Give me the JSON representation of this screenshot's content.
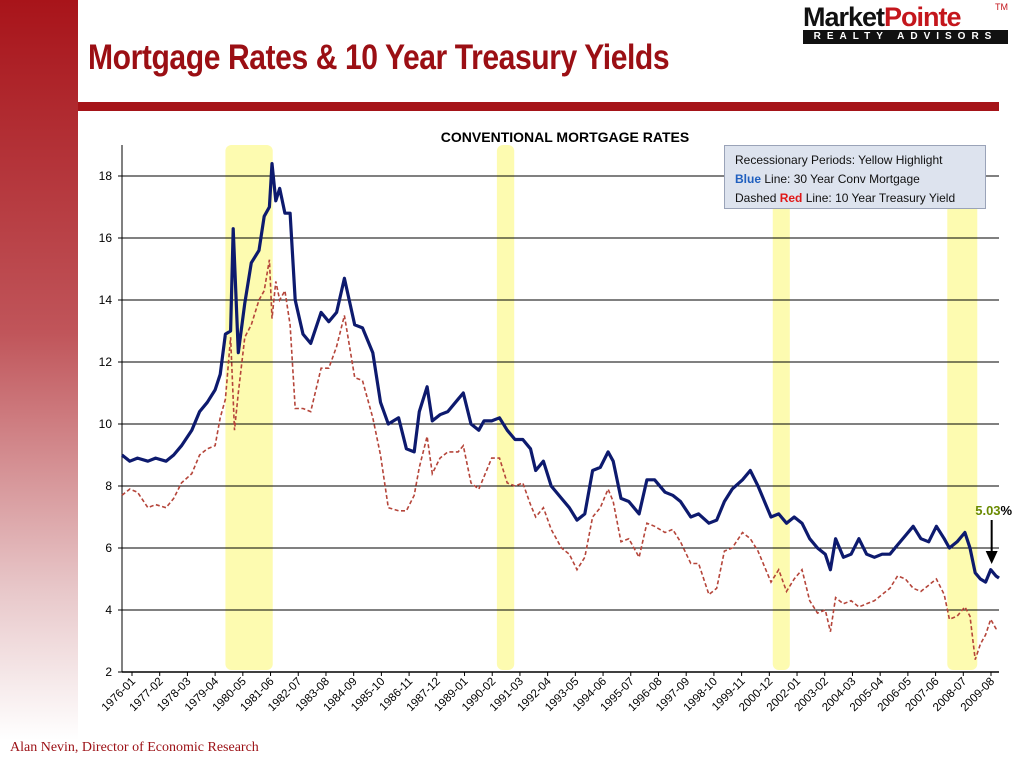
{
  "slide": {
    "title": "Mortgage Rates & 10 Year Treasury Yields",
    "footer": "Alan Nevin, Director of Economic Research",
    "logo_main_1": "Market",
    "logo_main_2": "Pointe",
    "logo_tm": "TM",
    "logo_sub": "REALTY ADVISORS"
  },
  "legend": {
    "line1": "Recessionary Periods: Yellow Highlight",
    "line2_prefix": "Blue",
    "line2_rest": " Line:  30 Year Conv Mortgage",
    "line3_pre": "Dashed ",
    "line3_red": "Red",
    "line3_rest": " Line: 10 Year Treasury Yield"
  },
  "colors": {
    "brand_red": "#a51419",
    "mortgage_line": "#0d1a6e",
    "treasury_line": "#b5453a",
    "recession_fill": "#fdfbb0",
    "grid": "#000000"
  },
  "chart_data": {
    "type": "line",
    "title": "CONVENTIONAL MORTGAGE RATES",
    "xlabel": "",
    "ylabel": "",
    "ylim": [
      2,
      19
    ],
    "yticks": [
      2,
      4,
      6,
      8,
      10,
      12,
      14,
      16,
      18
    ],
    "grid": "horizontal",
    "xlim": [
      1976.0,
      2009.92
    ],
    "x_tick_labels": [
      "1976-01",
      "1977-02",
      "1978-03",
      "1979-04",
      "1980-05",
      "1981-06",
      "1982-07",
      "1983-08",
      "1984-09",
      "1985-10",
      "1986-11",
      "1987-12",
      "1989-01",
      "1990-02",
      "1991-03",
      "1992-04",
      "1993-05",
      "1994-06",
      "1995-07",
      "1996-08",
      "1997-09",
      "1998-10",
      "1999-11",
      "2000-12",
      "2002-01",
      "2003-02",
      "2004-03",
      "2005-04",
      "2006-05",
      "2007-06",
      "2008-07",
      "2009-08"
    ],
    "recessions": [
      [
        1980.0,
        1981.83
      ],
      [
        1990.5,
        1991.17
      ],
      [
        2001.17,
        2001.83
      ],
      [
        2007.92,
        2009.08
      ]
    ],
    "annotation": {
      "text": "5.03%",
      "x": 2009.83,
      "y": 5.03
    },
    "series": [
      {
        "name": "30 Year Conv Mortgage",
        "style": "solid",
        "x": [
          1976.0,
          1976.3,
          1976.6,
          1977.0,
          1977.3,
          1977.7,
          1978.0,
          1978.3,
          1978.7,
          1979.0,
          1979.3,
          1979.6,
          1979.8,
          1980.0,
          1980.2,
          1980.3,
          1980.5,
          1980.75,
          1981.0,
          1981.3,
          1981.5,
          1981.7,
          1981.8,
          1981.95,
          1982.1,
          1982.3,
          1982.5,
          1982.7,
          1983.0,
          1983.3,
          1983.7,
          1984.0,
          1984.3,
          1984.6,
          1985.0,
          1985.3,
          1985.7,
          1986.0,
          1986.3,
          1986.7,
          1987.0,
          1987.3,
          1987.5,
          1987.8,
          1988.0,
          1988.3,
          1988.6,
          1989.0,
          1989.2,
          1989.5,
          1989.8,
          1990.0,
          1990.3,
          1990.6,
          1990.9,
          1991.2,
          1991.5,
          1991.8,
          1992.0,
          1992.3,
          1992.6,
          1993.0,
          1993.3,
          1993.6,
          1993.9,
          1994.2,
          1994.5,
          1994.8,
          1995.0,
          1995.3,
          1995.6,
          1996.0,
          1996.3,
          1996.6,
          1997.0,
          1997.3,
          1997.6,
          1998.0,
          1998.3,
          1998.7,
          1999.0,
          1999.3,
          1999.6,
          2000.0,
          2000.3,
          2000.6,
          2000.9,
          2001.1,
          2001.4,
          2001.7,
          2002.0,
          2002.3,
          2002.6,
          2002.9,
          2003.2,
          2003.4,
          2003.6,
          2003.9,
          2004.2,
          2004.5,
          2004.8,
          2005.1,
          2005.4,
          2005.7,
          2006.0,
          2006.3,
          2006.6,
          2006.9,
          2007.2,
          2007.5,
          2007.8,
          2008.0,
          2008.3,
          2008.6,
          2008.8,
          2009.0,
          2009.2,
          2009.4,
          2009.6,
          2009.8,
          2009.92
        ],
        "y": [
          9.0,
          8.8,
          8.9,
          8.8,
          8.9,
          8.8,
          9.0,
          9.3,
          9.8,
          10.4,
          10.7,
          11.1,
          11.6,
          12.9,
          13.0,
          16.3,
          12.3,
          13.9,
          15.2,
          15.6,
          16.7,
          17.0,
          18.4,
          17.2,
          17.6,
          16.8,
          16.8,
          14.0,
          12.9,
          12.6,
          13.6,
          13.3,
          13.6,
          14.7,
          13.2,
          13.1,
          12.3,
          10.7,
          10.0,
          10.2,
          9.2,
          9.1,
          10.4,
          11.2,
          10.1,
          10.3,
          10.4,
          10.8,
          11.0,
          10.0,
          9.8,
          10.1,
          10.1,
          10.2,
          9.8,
          9.5,
          9.5,
          9.2,
          8.5,
          8.8,
          8.0,
          7.6,
          7.3,
          6.9,
          7.1,
          8.5,
          8.6,
          9.1,
          8.8,
          7.6,
          7.5,
          7.1,
          8.2,
          8.2,
          7.8,
          7.7,
          7.5,
          7.0,
          7.1,
          6.8,
          6.9,
          7.5,
          7.9,
          8.2,
          8.5,
          8.0,
          7.4,
          7.0,
          7.1,
          6.8,
          7.0,
          6.8,
          6.3,
          6.0,
          5.8,
          5.3,
          6.3,
          5.7,
          5.8,
          6.3,
          5.8,
          5.7,
          5.8,
          5.8,
          6.1,
          6.4,
          6.7,
          6.3,
          6.2,
          6.7,
          6.3,
          6.0,
          6.2,
          6.5,
          6.0,
          5.2,
          5.0,
          4.9,
          5.3,
          5.1,
          5.03
        ]
      },
      {
        "name": "10 Year Treasury Yield",
        "style": "dashed",
        "x": [
          1976.0,
          1976.3,
          1976.6,
          1977.0,
          1977.3,
          1977.7,
          1978.0,
          1978.3,
          1978.7,
          1979.0,
          1979.3,
          1979.6,
          1979.8,
          1980.0,
          1980.2,
          1980.35,
          1980.5,
          1980.75,
          1981.0,
          1981.3,
          1981.5,
          1981.7,
          1981.8,
          1981.95,
          1982.1,
          1982.3,
          1982.5,
          1982.7,
          1983.0,
          1983.3,
          1983.7,
          1984.0,
          1984.3,
          1984.6,
          1985.0,
          1985.3,
          1985.7,
          1986.0,
          1986.3,
          1986.7,
          1987.0,
          1987.3,
          1987.5,
          1987.8,
          1988.0,
          1988.3,
          1988.6,
          1989.0,
          1989.2,
          1989.5,
          1989.8,
          1990.0,
          1990.3,
          1990.6,
          1990.9,
          1991.2,
          1991.5,
          1991.8,
          1992.0,
          1992.3,
          1992.6,
          1993.0,
          1993.3,
          1993.6,
          1993.9,
          1994.2,
          1994.5,
          1994.8,
          1995.0,
          1995.3,
          1995.6,
          1996.0,
          1996.3,
          1996.6,
          1997.0,
          1997.3,
          1997.6,
          1998.0,
          1998.3,
          1998.7,
          1999.0,
          1999.3,
          1999.6,
          2000.0,
          2000.3,
          2000.6,
          2000.9,
          2001.1,
          2001.4,
          2001.7,
          2002.0,
          2002.3,
          2002.6,
          2002.9,
          2003.2,
          2003.4,
          2003.6,
          2003.9,
          2004.2,
          2004.5,
          2004.8,
          2005.1,
          2005.4,
          2005.7,
          2006.0,
          2006.3,
          2006.6,
          2006.9,
          2007.2,
          2007.5,
          2007.8,
          2008.0,
          2008.3,
          2008.6,
          2008.8,
          2009.0,
          2009.2,
          2009.4,
          2009.6,
          2009.8,
          2009.92
        ],
        "y": [
          7.7,
          7.9,
          7.8,
          7.3,
          7.4,
          7.3,
          7.6,
          8.1,
          8.4,
          9.0,
          9.2,
          9.3,
          10.2,
          10.8,
          12.8,
          9.8,
          11.0,
          12.8,
          13.2,
          14.0,
          14.3,
          15.3,
          13.4,
          14.6,
          14.0,
          14.3,
          13.2,
          10.5,
          10.5,
          10.4,
          11.8,
          11.8,
          12.5,
          13.5,
          11.5,
          11.4,
          10.2,
          9.0,
          7.3,
          7.2,
          7.2,
          7.7,
          8.6,
          9.6,
          8.4,
          8.9,
          9.1,
          9.1,
          9.3,
          8.1,
          7.9,
          8.3,
          8.9,
          8.9,
          8.1,
          8.0,
          8.1,
          7.4,
          7.0,
          7.3,
          6.6,
          6.0,
          5.8,
          5.3,
          5.7,
          7.0,
          7.3,
          7.9,
          7.5,
          6.2,
          6.3,
          5.7,
          6.8,
          6.7,
          6.5,
          6.6,
          6.2,
          5.5,
          5.5,
          4.5,
          4.7,
          5.9,
          6.0,
          6.5,
          6.3,
          5.9,
          5.3,
          4.9,
          5.3,
          4.6,
          5.0,
          5.3,
          4.3,
          3.9,
          4.0,
          3.3,
          4.4,
          4.2,
          4.3,
          4.1,
          4.2,
          4.3,
          4.5,
          4.7,
          5.1,
          5.0,
          4.7,
          4.6,
          4.8,
          5.0,
          4.5,
          3.7,
          3.8,
          4.1,
          3.8,
          2.4,
          2.9,
          3.2,
          3.7,
          3.4,
          3.4
        ]
      }
    ]
  }
}
